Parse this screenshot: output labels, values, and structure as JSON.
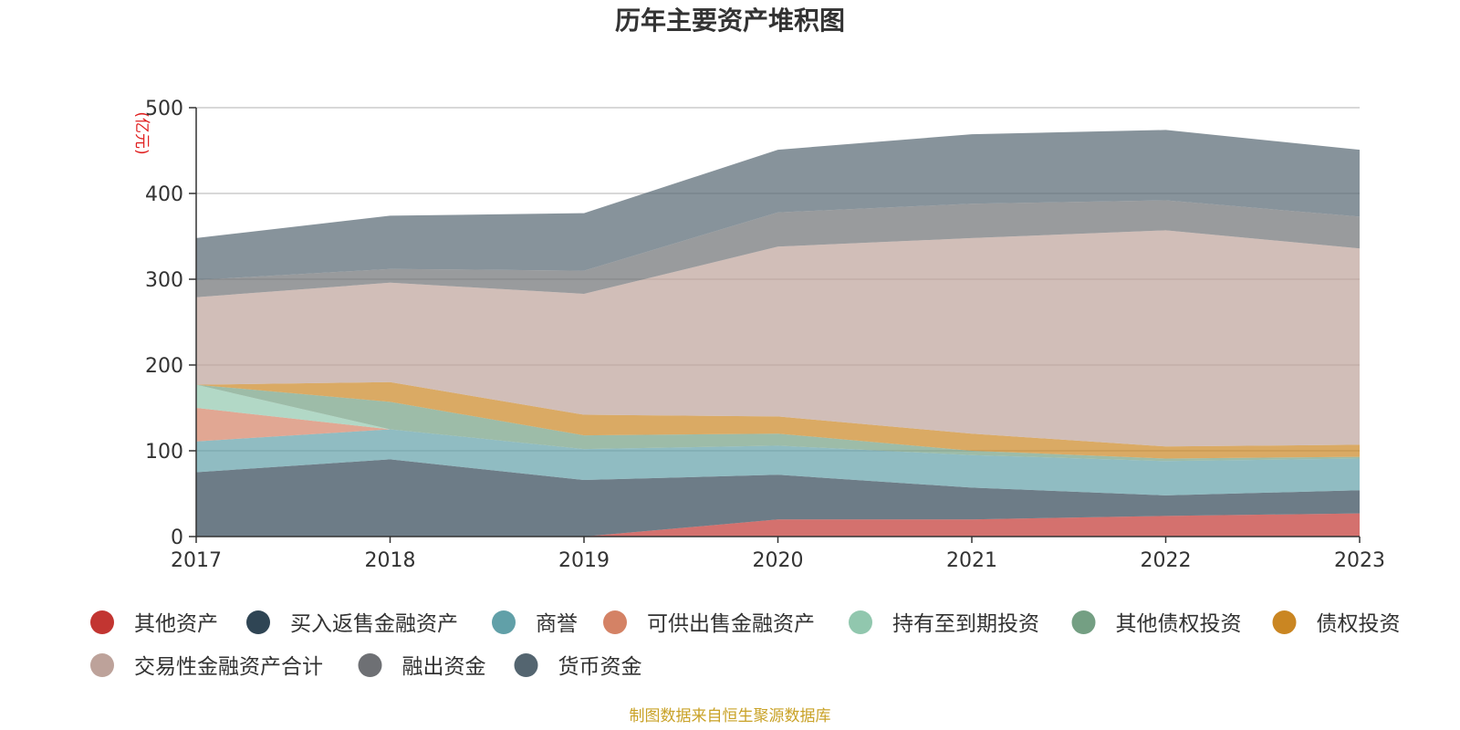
{
  "chart_data": {
    "type": "area",
    "stacked": true,
    "title": "历年主要资产堆积图",
    "ylabel": "(亿元)",
    "x": [
      "2017",
      "2018",
      "2019",
      "2020",
      "2021",
      "2022",
      "2023"
    ],
    "ylim": [
      0,
      500
    ],
    "yticks": [
      "0",
      "100",
      "200",
      "300",
      "400",
      "500"
    ],
    "grid": true,
    "legend_position": "bottom",
    "series": [
      {
        "name": "其他资产",
        "color": "#c23531",
        "values": [
          0,
          0,
          0,
          20,
          20,
          24,
          27
        ]
      },
      {
        "name": "买入返售金融资产",
        "color": "#2f4554",
        "values": [
          75,
          90,
          66,
          52,
          37,
          24,
          27
        ]
      },
      {
        "name": "商誉",
        "color": "#61a0a8",
        "values": [
          36,
          35,
          36,
          34,
          38,
          40,
          37
        ]
      },
      {
        "name": "可供出售金融资产",
        "color": "#d48265",
        "values": [
          39,
          0,
          0,
          0,
          0,
          0,
          0
        ]
      },
      {
        "name": "持有至到期投资",
        "color": "#91c7ae",
        "values": [
          27,
          0,
          0,
          0,
          0,
          0,
          0
        ]
      },
      {
        "name": "其他债权投资",
        "color": "#749f83",
        "values": [
          0,
          32,
          16,
          14,
          5,
          3,
          2
        ]
      },
      {
        "name": "债权投资",
        "color": "#ca8622",
        "values": [
          0,
          23,
          24,
          20,
          20,
          14,
          14
        ]
      },
      {
        "name": "交易性金融资产合计",
        "color": "#bda29a",
        "values": [
          102,
          116,
          141,
          198,
          228,
          252,
          229
        ]
      },
      {
        "name": "融出资金",
        "color": "#6e7074",
        "values": [
          20,
          16,
          27,
          40,
          40,
          35,
          37
        ]
      },
      {
        "name": "货币资金",
        "color": "#546570",
        "values": [
          49,
          62,
          67,
          73,
          81,
          82,
          78
        ]
      }
    ]
  },
  "footer": {
    "source": "制图数据来自恒生聚源数据库"
  }
}
